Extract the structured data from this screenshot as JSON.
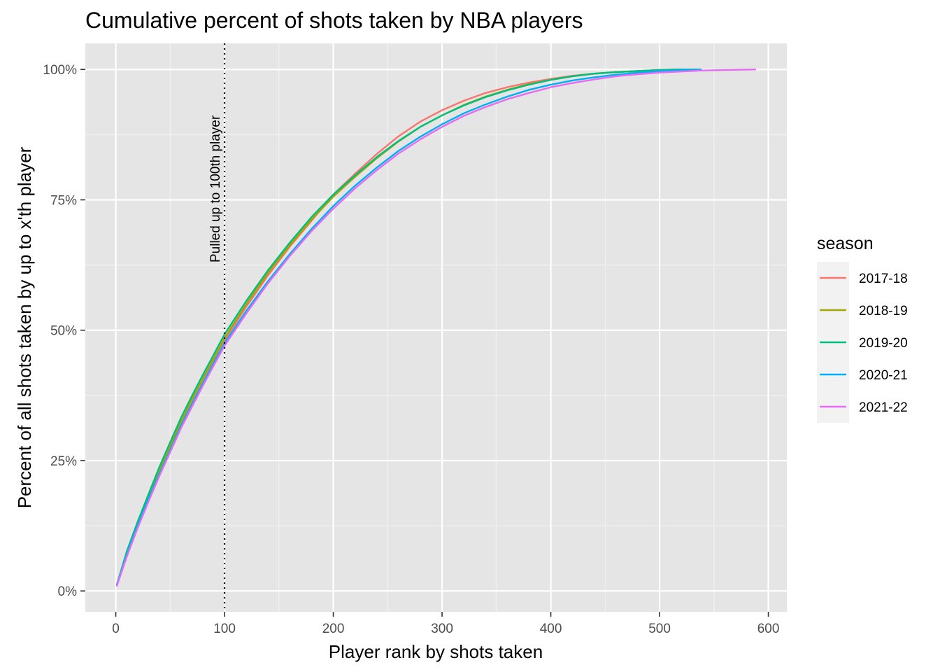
{
  "chart_data": {
    "type": "line",
    "title": "Cumulative percent of shots taken by NBA players",
    "xlabel": "Player rank by shots taken",
    "ylabel": "Percent of all shots taken by up to x'th player",
    "xlim": [
      -28,
      617
    ],
    "ylim": [
      -0.04,
      1.05
    ],
    "x_ticks": [
      0,
      100,
      200,
      300,
      400,
      500,
      600
    ],
    "x_tick_labels": [
      "0",
      "100",
      "200",
      "300",
      "400",
      "500",
      "600"
    ],
    "y_ticks": [
      0,
      0.25,
      0.5,
      0.75,
      1.0
    ],
    "y_tick_labels": [
      "0%",
      "25%",
      "50%",
      "75%",
      "100%"
    ],
    "grid": true,
    "legend_position": "right",
    "legend_title": "season",
    "vline": {
      "x": 100,
      "style": "dotted",
      "label": "Pulled up to 100th player"
    },
    "series": [
      {
        "name": "2017-18",
        "color": "#F8766D",
        "points": [
          [
            1,
            0.012
          ],
          [
            10,
            0.07
          ],
          [
            20,
            0.125
          ],
          [
            30,
            0.176
          ],
          [
            40,
            0.225
          ],
          [
            50,
            0.27
          ],
          [
            60,
            0.32
          ],
          [
            70,
            0.36
          ],
          [
            80,
            0.4
          ],
          [
            90,
            0.44
          ],
          [
            100,
            0.48
          ],
          [
            120,
            0.545
          ],
          [
            140,
            0.605
          ],
          [
            160,
            0.66
          ],
          [
            180,
            0.71
          ],
          [
            200,
            0.76
          ],
          [
            220,
            0.8
          ],
          [
            240,
            0.838
          ],
          [
            260,
            0.872
          ],
          [
            280,
            0.9
          ],
          [
            300,
            0.922
          ],
          [
            320,
            0.94
          ],
          [
            340,
            0.955
          ],
          [
            360,
            0.966
          ],
          [
            380,
            0.975
          ],
          [
            400,
            0.982
          ],
          [
            420,
            0.988
          ],
          [
            440,
            0.992
          ],
          [
            460,
            0.995
          ],
          [
            480,
            0.997
          ],
          [
            500,
            0.999
          ],
          [
            520,
            1.0
          ],
          [
            535,
            1.0
          ]
        ]
      },
      {
        "name": "2018-19",
        "color": "#A3A500",
        "points": [
          [
            1,
            0.012
          ],
          [
            10,
            0.072
          ],
          [
            20,
            0.128
          ],
          [
            30,
            0.18
          ],
          [
            40,
            0.23
          ],
          [
            50,
            0.277
          ],
          [
            60,
            0.325
          ],
          [
            70,
            0.367
          ],
          [
            80,
            0.407
          ],
          [
            90,
            0.446
          ],
          [
            100,
            0.485
          ],
          [
            120,
            0.55
          ],
          [
            140,
            0.61
          ],
          [
            160,
            0.663
          ],
          [
            180,
            0.712
          ],
          [
            200,
            0.756
          ],
          [
            220,
            0.794
          ],
          [
            240,
            0.83
          ],
          [
            260,
            0.862
          ],
          [
            280,
            0.89
          ],
          [
            300,
            0.912
          ],
          [
            320,
            0.932
          ],
          [
            340,
            0.948
          ],
          [
            360,
            0.961
          ],
          [
            380,
            0.972
          ],
          [
            400,
            0.98
          ],
          [
            420,
            0.987
          ],
          [
            440,
            0.992
          ],
          [
            460,
            0.995
          ],
          [
            480,
            0.997
          ],
          [
            500,
            0.999
          ],
          [
            520,
            1.0
          ],
          [
            532,
            1.0
          ]
        ]
      },
      {
        "name": "2019-20",
        "color": "#00BF7D",
        "points": [
          [
            1,
            0.012
          ],
          [
            10,
            0.075
          ],
          [
            20,
            0.132
          ],
          [
            30,
            0.185
          ],
          [
            40,
            0.237
          ],
          [
            50,
            0.285
          ],
          [
            60,
            0.332
          ],
          [
            70,
            0.374
          ],
          [
            80,
            0.414
          ],
          [
            90,
            0.453
          ],
          [
            100,
            0.492
          ],
          [
            120,
            0.556
          ],
          [
            140,
            0.615
          ],
          [
            160,
            0.668
          ],
          [
            180,
            0.717
          ],
          [
            200,
            0.76
          ],
          [
            220,
            0.797
          ],
          [
            240,
            0.832
          ],
          [
            260,
            0.863
          ],
          [
            280,
            0.89
          ],
          [
            300,
            0.912
          ],
          [
            320,
            0.931
          ],
          [
            340,
            0.947
          ],
          [
            360,
            0.96
          ],
          [
            380,
            0.971
          ],
          [
            400,
            0.98
          ],
          [
            420,
            0.987
          ],
          [
            440,
            0.992
          ],
          [
            460,
            0.995
          ],
          [
            480,
            0.997
          ],
          [
            500,
            0.999
          ],
          [
            520,
            1.0
          ],
          [
            528,
            1.0
          ]
        ]
      },
      {
        "name": "2020-21",
        "color": "#00B0F6",
        "points": [
          [
            1,
            0.012
          ],
          [
            10,
            0.07
          ],
          [
            20,
            0.125
          ],
          [
            30,
            0.176
          ],
          [
            40,
            0.224
          ],
          [
            50,
            0.27
          ],
          [
            60,
            0.317
          ],
          [
            70,
            0.358
          ],
          [
            80,
            0.398
          ],
          [
            90,
            0.437
          ],
          [
            100,
            0.475
          ],
          [
            120,
            0.537
          ],
          [
            140,
            0.594
          ],
          [
            160,
            0.646
          ],
          [
            180,
            0.694
          ],
          [
            200,
            0.738
          ],
          [
            220,
            0.777
          ],
          [
            240,
            0.812
          ],
          [
            260,
            0.844
          ],
          [
            280,
            0.871
          ],
          [
            300,
            0.895
          ],
          [
            320,
            0.916
          ],
          [
            340,
            0.933
          ],
          [
            360,
            0.948
          ],
          [
            380,
            0.961
          ],
          [
            400,
            0.971
          ],
          [
            420,
            0.979
          ],
          [
            440,
            0.985
          ],
          [
            460,
            0.99
          ],
          [
            480,
            0.994
          ],
          [
            500,
            0.997
          ],
          [
            520,
            0.999
          ],
          [
            538,
            1.0
          ]
        ]
      },
      {
        "name": "2021-22",
        "color": "#E76BF3",
        "points": [
          [
            1,
            0.01
          ],
          [
            10,
            0.065
          ],
          [
            20,
            0.12
          ],
          [
            30,
            0.171
          ],
          [
            40,
            0.22
          ],
          [
            50,
            0.266
          ],
          [
            60,
            0.312
          ],
          [
            70,
            0.353
          ],
          [
            80,
            0.393
          ],
          [
            90,
            0.432
          ],
          [
            100,
            0.47
          ],
          [
            120,
            0.532
          ],
          [
            140,
            0.59
          ],
          [
            160,
            0.642
          ],
          [
            180,
            0.69
          ],
          [
            200,
            0.733
          ],
          [
            220,
            0.772
          ],
          [
            240,
            0.807
          ],
          [
            260,
            0.839
          ],
          [
            280,
            0.866
          ],
          [
            300,
            0.89
          ],
          [
            320,
            0.911
          ],
          [
            340,
            0.928
          ],
          [
            360,
            0.943
          ],
          [
            380,
            0.955
          ],
          [
            400,
            0.966
          ],
          [
            420,
            0.974
          ],
          [
            440,
            0.981
          ],
          [
            460,
            0.987
          ],
          [
            480,
            0.991
          ],
          [
            500,
            0.994
          ],
          [
            520,
            0.996
          ],
          [
            540,
            0.998
          ],
          [
            560,
            0.999
          ],
          [
            588,
            1.0
          ]
        ]
      }
    ]
  }
}
